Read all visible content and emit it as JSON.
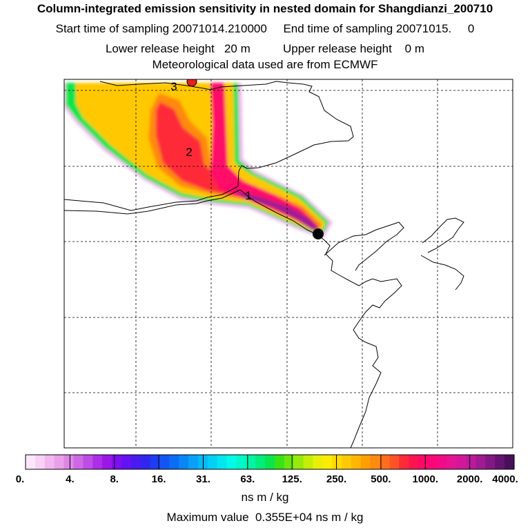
{
  "title": {
    "line1": "Column-integrated emission sensitivity in nested domain for Shangdianzi_200710",
    "line2": "Start time of sampling 20071014.210000     End time of sampling 20071015.     0",
    "line3": "Lower release height   20 m          Upper release height    0 m",
    "line4": "Meteorological data used are from ECMWF"
  },
  "map": {
    "labels": [
      {
        "id": "label-day-1",
        "text": "1"
      },
      {
        "id": "label-day-2",
        "text": "2"
      },
      {
        "id": "label-day-3",
        "text": "3"
      }
    ],
    "receptor": "Shangdianzi",
    "colors": {
      "land_outline": "#000000",
      "grid": "#000000",
      "receptor_marker": "#000000",
      "source_marker": "#e8201e"
    }
  },
  "colorbar": {
    "tick_labels": [
      "0.",
      "4.",
      "8.",
      "16.",
      "31.",
      "63.",
      "125.",
      "250.",
      "500.",
      "1000.",
      "2000.",
      "4000."
    ],
    "colors": [
      "#fde6fb",
      "#f8d2f6",
      "#f2b6f0",
      "#e9a0ea",
      "#dd86e6",
      "#cf68e6",
      "#c04ce8",
      "#ad2ee8",
      "#9a18e6",
      "#7f0ef0",
      "#6512f2",
      "#4a1af0",
      "#3026f0",
      "#1e3cf2",
      "#1454f2",
      "#0c6cf4",
      "#0a86f6",
      "#08a0f8",
      "#06b8f6",
      "#00d0f4",
      "#00e6f0",
      "#00fae8",
      "#00f8c8",
      "#00f4a4",
      "#00ee7a",
      "#0ce44e",
      "#38e214",
      "#6ae60e",
      "#98ea0a",
      "#c4ee08",
      "#e8f00a",
      "#fcec00",
      "#ffda00",
      "#ffc800",
      "#ffb600",
      "#ffa000",
      "#ff8a10",
      "#ff6e1c",
      "#ff5228",
      "#ff2a38",
      "#ff1450",
      "#ff0a68",
      "#fa0878",
      "#f00c88",
      "#e41494",
      "#d2189a",
      "#bc1a9c",
      "#a01a92",
      "#821884",
      "#641470",
      "#48105a"
    ],
    "unit": "ns m / kg"
  },
  "max_value_text": "Maximum value  0.355E+04 ns m / kg"
}
